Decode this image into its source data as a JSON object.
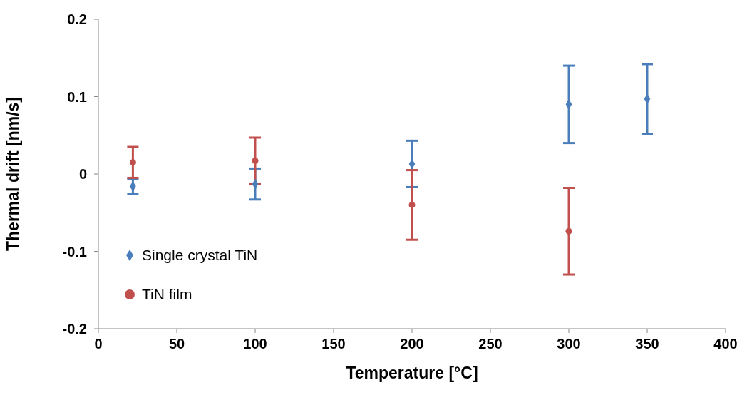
{
  "chart_data": {
    "type": "scatter",
    "xlabel": "Temperature [°C]",
    "ylabel": "Thermal drift [nm/s]",
    "xlim": [
      0,
      400
    ],
    "xticks": [
      0,
      50,
      100,
      150,
      200,
      250,
      300,
      350,
      400
    ],
    "ylim": [
      -0.2,
      0.2
    ],
    "yticks": [
      -0.2,
      -0.1,
      0,
      0.1,
      0.2
    ],
    "grid": false,
    "legend": "bottom left",
    "series": [
      {
        "name": "Single crystal TiN",
        "color": "#4a7ebb",
        "marker": "diamond",
        "x": [
          22,
          100,
          200,
          300,
          350
        ],
        "values": [
          -0.016,
          -0.013,
          0.013,
          0.09,
          0.097
        ],
        "errors": [
          0.01,
          0.02,
          0.03,
          0.05,
          0.045
        ]
      },
      {
        "name": "TiN film",
        "color": "#c0504d",
        "marker": "circle",
        "x": [
          22,
          100,
          200,
          300
        ],
        "values": [
          0.015,
          0.017,
          -0.04,
          -0.074
        ],
        "errors": [
          0.02,
          0.03,
          0.045,
          0.056
        ]
      }
    ]
  }
}
